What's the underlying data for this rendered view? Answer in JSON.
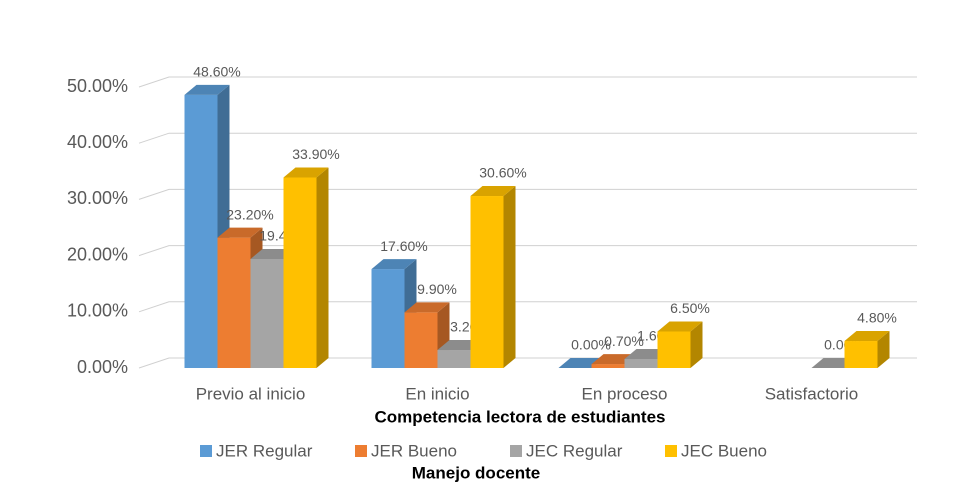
{
  "chart_data": {
    "type": "bar3d",
    "categories": [
      "Previo al inicio",
      "En inicio",
      "En proceso",
      "Satisfactorio"
    ],
    "series": [
      {
        "name": "JER Regular",
        "color": "#5b9bd5",
        "values": [
          48.6,
          17.6,
          0.0,
          null
        ],
        "value_labels": [
          "48.60%",
          "17.60%",
          "0.00%",
          null
        ]
      },
      {
        "name": "JER Bueno",
        "color": "#ed7d31",
        "values": [
          23.2,
          9.9,
          0.7,
          null
        ],
        "value_labels": [
          "23.20%",
          "9.90%",
          "0.70%",
          null
        ]
      },
      {
        "name": "JEC Regular",
        "color": "#a5a5a5",
        "values": [
          19.4,
          3.2,
          1.6,
          0.0
        ],
        "value_labels": [
          "19.40%",
          "3.20%",
          "1.60%",
          "0.00%"
        ]
      },
      {
        "name": "JEC Bueno",
        "color": "#ffc000",
        "values": [
          33.9,
          30.6,
          6.5,
          4.8
        ],
        "value_labels": [
          "33.90%",
          "30.60%",
          "6.50%",
          "4.80%"
        ]
      }
    ],
    "ylim": [
      0,
      50
    ],
    "yticks": [
      {
        "value": 0,
        "label": "0.00%"
      },
      {
        "value": 10,
        "label": "10.00%"
      },
      {
        "value": 20,
        "label": "20.00%"
      },
      {
        "value": 30,
        "label": "30.00%"
      },
      {
        "value": 40,
        "label": "40.00%"
      },
      {
        "value": 50,
        "label": "50.00%"
      }
    ],
    "grid": true,
    "x_label": "Competencia lectora de estudiantes",
    "legend_title": "Manejo docente",
    "legend_position": "bottom"
  }
}
